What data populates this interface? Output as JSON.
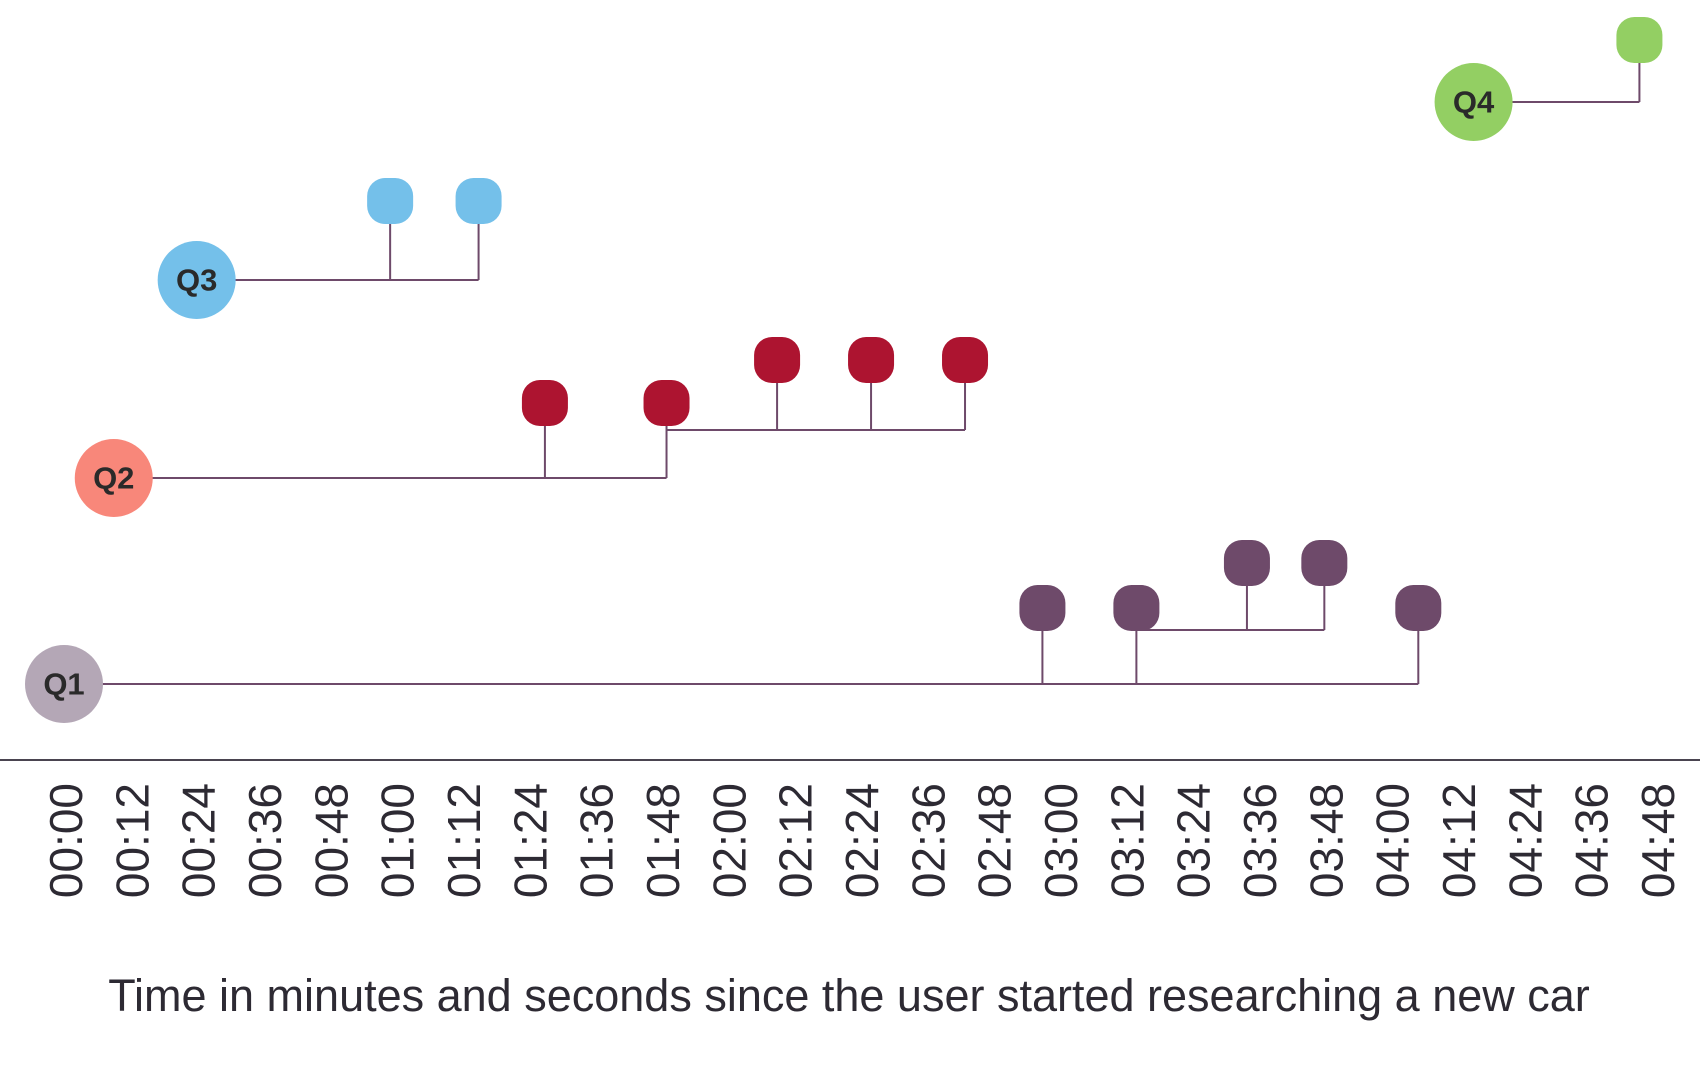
{
  "caption": "Time in minutes and seconds since the user started researching a new car",
  "ticks": [
    "00:00",
    "00:12",
    "00:24",
    "00:36",
    "00:48",
    "01:00",
    "01:12",
    "01:24",
    "01:36",
    "01:48",
    "02:00",
    "02:12",
    "02:24",
    "02:36",
    "02:48",
    "03:00",
    "03:12",
    "03:24",
    "03:36",
    "03:48",
    "04:00",
    "04:12",
    "04:24",
    "04:36",
    "04:48"
  ],
  "queries": [
    {
      "label": "Q1",
      "start_seconds": 0,
      "circle_color": "#b4a7b6",
      "event_color": "#6e4a6a",
      "line_color": "#6e4a6a",
      "events": [
        {
          "time_seconds": 177,
          "level": 1
        },
        {
          "time_seconds": 194,
          "level": 1
        },
        {
          "time_seconds": 214,
          "level": 2,
          "parent_index": 1
        },
        {
          "time_seconds": 228,
          "level": 2,
          "parent_index": 1
        },
        {
          "time_seconds": 245,
          "level": 1
        }
      ]
    },
    {
      "label": "Q2",
      "start_seconds": 9,
      "circle_color": "#f8877a",
      "event_color": "#ad1430",
      "line_color": "#6e4a6a",
      "events": [
        {
          "time_seconds": 87,
          "level": 1
        },
        {
          "time_seconds": 109,
          "level": 1
        },
        {
          "time_seconds": 129,
          "level": 2,
          "parent_index": 1
        },
        {
          "time_seconds": 146,
          "level": 2,
          "parent_index": 1
        },
        {
          "time_seconds": 163,
          "level": 2,
          "parent_index": 1
        }
      ]
    },
    {
      "label": "Q3",
      "start_seconds": 24,
      "circle_color": "#74c0ea",
      "event_color": "#74c0ea",
      "line_color": "#6e4a6a",
      "events": [
        {
          "time_seconds": 59,
          "level": 1
        },
        {
          "time_seconds": 75,
          "level": 1
        }
      ]
    },
    {
      "label": "Q4",
      "start_seconds": 255,
      "circle_color": "#93cf63",
      "event_color": "#93cf63",
      "line_color": "#6e4a6a",
      "events": [
        {
          "time_seconds": 285,
          "level": 1
        }
      ]
    }
  ]
}
